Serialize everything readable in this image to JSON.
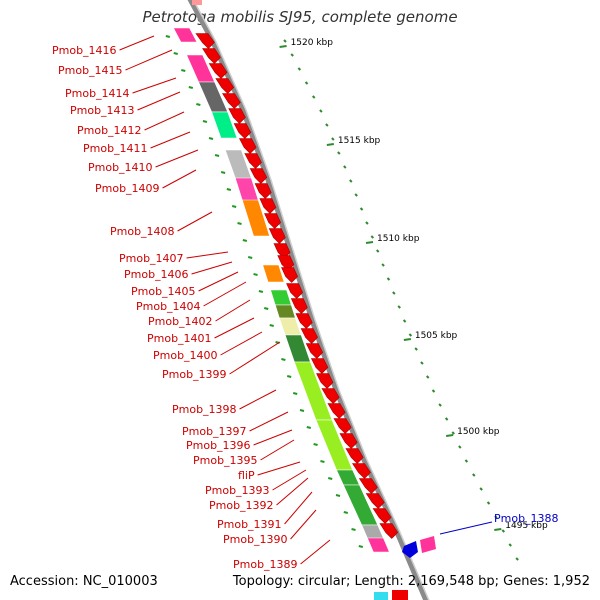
{
  "title": "Petrotoga mobilis SJ95, complete genome",
  "footer": {
    "accession": "Accession: NC_010003",
    "summary": "Topology: circular; Length: 2,169,548 bp; Genes: 1,952"
  },
  "colors": {
    "backbone": "#8a8a8a",
    "label_red": "#cc0000",
    "label_blue": "#0000cc",
    "tick_green": "#2e8b2e",
    "cds_red": "#ee0000"
  },
  "scale": {
    "ticks": [
      {
        "label": "1520 kbp"
      },
      {
        "label": "1515 kbp"
      },
      {
        "label": "1510 kbp"
      },
      {
        "label": "1505 kbp"
      },
      {
        "label": "1500 kbp"
      },
      {
        "label": "1495 kbp"
      }
    ]
  },
  "genes": [
    {
      "label": "Pmob_1416",
      "color": "red"
    },
    {
      "label": "Pmob_1415",
      "color": "red"
    },
    {
      "label": "Pmob_1414",
      "color": "red"
    },
    {
      "label": "Pmob_1413",
      "color": "red"
    },
    {
      "label": "Pmob_1412",
      "color": "red"
    },
    {
      "label": "Pmob_1411",
      "color": "red"
    },
    {
      "label": "Pmob_1410",
      "color": "red"
    },
    {
      "label": "Pmob_1409",
      "color": "red"
    },
    {
      "label": "Pmob_1408",
      "color": "red"
    },
    {
      "label": "Pmob_1407",
      "color": "red"
    },
    {
      "label": "Pmob_1406",
      "color": "red"
    },
    {
      "label": "Pmob_1405",
      "color": "red"
    },
    {
      "label": "Pmob_1404",
      "color": "red"
    },
    {
      "label": "Pmob_1402",
      "color": "red"
    },
    {
      "label": "Pmob_1401",
      "color": "red"
    },
    {
      "label": "Pmob_1400",
      "color": "red"
    },
    {
      "label": "Pmob_1399",
      "color": "red"
    },
    {
      "label": "Pmob_1398",
      "color": "red"
    },
    {
      "label": "Pmob_1397",
      "color": "red"
    },
    {
      "label": "Pmob_1396",
      "color": "red"
    },
    {
      "label": "Pmob_1395",
      "color": "red"
    },
    {
      "label": "fliP",
      "color": "red"
    },
    {
      "label": "Pmob_1393",
      "color": "red"
    },
    {
      "label": "Pmob_1392",
      "color": "red"
    },
    {
      "label": "Pmob_1391",
      "color": "red"
    },
    {
      "label": "Pmob_1390",
      "color": "red"
    },
    {
      "label": "Pmob_1389",
      "color": "red"
    },
    {
      "label": "Pmob_1388",
      "color": "blue"
    }
  ],
  "cog_blocks": [
    {
      "color": "#ff3399"
    },
    {
      "color": "#ff3399"
    },
    {
      "color": "#666666"
    },
    {
      "color": "#666666"
    },
    {
      "color": "#00ee88"
    },
    {
      "color": "#bbbbbb"
    },
    {
      "color": "#ff44aa"
    },
    {
      "color": "#ff8800"
    },
    {
      "color": "#ff8800"
    },
    {
      "color": "#33cc33"
    },
    {
      "color": "#668822"
    },
    {
      "color": "#eeeeaa"
    },
    {
      "color": "#338833"
    },
    {
      "color": "#99ee22"
    },
    {
      "color": "#99ee22"
    },
    {
      "color": "#33aa33"
    },
    {
      "color": "#33aa33"
    },
    {
      "color": "#aaaaaa"
    },
    {
      "color": "#ff3399"
    }
  ]
}
